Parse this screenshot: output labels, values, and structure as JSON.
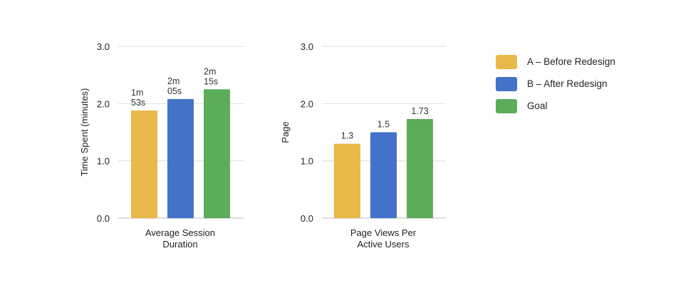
{
  "legend": [
    {
      "label": "A – Before Redesign",
      "color": "#E9B84A"
    },
    {
      "label": "B – After Redesign",
      "color": "#4472C9"
    },
    {
      "label": "Goal",
      "color": "#5BAD5A"
    }
  ],
  "chart_data": [
    {
      "type": "bar",
      "categories": [
        "Average Session Duration"
      ],
      "category_lines": [
        "Average Session",
        "Duration"
      ],
      "series": [
        {
          "name": "A – Before Redesign",
          "values": [
            1.88
          ],
          "label_lines": [
            "1m",
            "53s"
          ],
          "color": "#E9B84A"
        },
        {
          "name": "B – After Redesign",
          "values": [
            2.08
          ],
          "label_lines": [
            "2m",
            "05s"
          ],
          "color": "#4472C9"
        },
        {
          "name": "Goal",
          "values": [
            2.25
          ],
          "label_lines": [
            "2m",
            "15s"
          ],
          "color": "#5BAD5A"
        }
      ],
      "ylabel": "Time Spent (minutes)",
      "ylim": [
        0,
        3
      ],
      "yticks": [
        "0.0",
        "1.0",
        "2.0",
        "3.0"
      ],
      "grid": true,
      "legend": "right"
    },
    {
      "type": "bar",
      "categories": [
        "Page Views Per Active Users"
      ],
      "category_lines": [
        "Page Views Per",
        "Active Users"
      ],
      "series": [
        {
          "name": "A – Before Redesign",
          "values": [
            1.3
          ],
          "label_lines": [
            "1.3"
          ],
          "color": "#E9B84A"
        },
        {
          "name": "B – After Redesign",
          "values": [
            1.5
          ],
          "label_lines": [
            "1.5"
          ],
          "color": "#4472C9"
        },
        {
          "name": "Goal",
          "values": [
            1.73
          ],
          "label_lines": [
            "1.73"
          ],
          "color": "#5BAD5A"
        }
      ],
      "ylabel": "Page",
      "ylim": [
        0,
        3
      ],
      "yticks": [
        "0.0",
        "1.0",
        "2.0",
        "3.0"
      ],
      "grid": true,
      "legend": "right"
    }
  ]
}
